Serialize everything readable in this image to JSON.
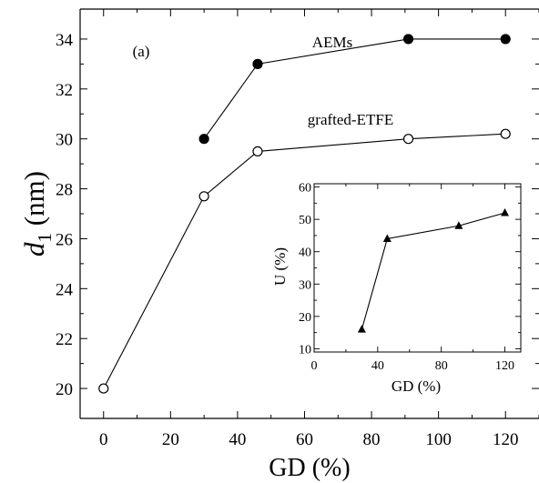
{
  "chart_data": [
    {
      "type": "line",
      "panel_label": "(a)",
      "xlabel": "GD (%)",
      "ylabel_main": "d",
      "ylabel_sub": "1",
      "ylabel_unit": "(nm)",
      "xlim": [
        -7,
        130
      ],
      "ylim": [
        18.8,
        35.2
      ],
      "xticks": [
        0,
        20,
        40,
        60,
        80,
        100,
        120
      ],
      "yticks": [
        20,
        22,
        24,
        26,
        28,
        30,
        32,
        34
      ],
      "grid": false,
      "legend": "none",
      "series": [
        {
          "name": "AEMs",
          "marker": "filled-circle",
          "x": [
            30,
            46,
            91,
            120
          ],
          "y": [
            30.0,
            33.0,
            34.0,
            34.0
          ]
        },
        {
          "name": "grafted-ETFE",
          "marker": "open-circle",
          "x": [
            0,
            30,
            46,
            91,
            120
          ],
          "y": [
            20.0,
            27.7,
            29.5,
            30.0,
            30.2
          ]
        }
      ]
    },
    {
      "type": "line",
      "inset": true,
      "xlabel": "GD (%)",
      "ylabel": "U (%)",
      "xlim": [
        0,
        130
      ],
      "ylim": [
        9,
        61
      ],
      "xticks": [
        0,
        40,
        80,
        120
      ],
      "yticks": [
        10,
        20,
        30,
        40,
        50,
        60
      ],
      "grid": false,
      "series": [
        {
          "marker": "filled-triangle",
          "x": [
            30,
            46,
            91,
            120
          ],
          "y": [
            16,
            44,
            48,
            52
          ]
        }
      ]
    }
  ]
}
